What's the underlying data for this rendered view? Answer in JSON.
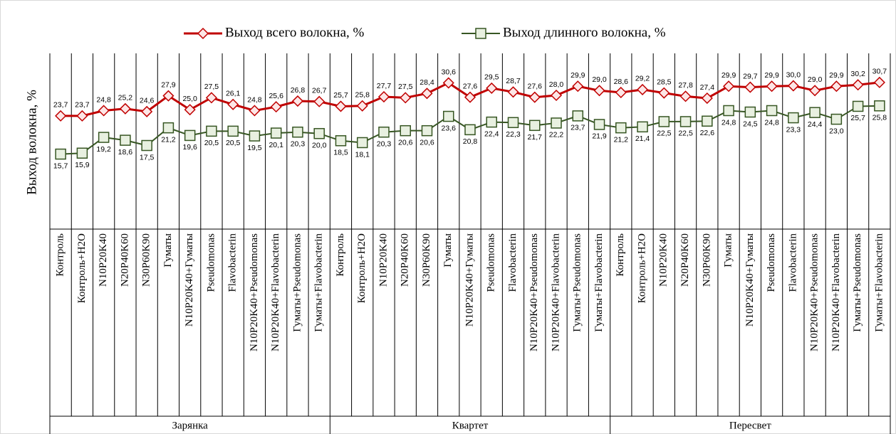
{
  "chart_data": {
    "type": "line",
    "y_label": "Выход волокна, %",
    "ylim": [
      0,
      35
    ],
    "groups": [
      "Зарянка",
      "Квартет",
      "Пересвет"
    ],
    "categories": [
      "Контроль",
      "Контроль+H2O",
      "N10P20K40",
      "N20P40K60",
      "N30P60K90",
      "Гуматы",
      "N10P20K40+Гуматы",
      "Pseudomonas",
      "Flavobacterin",
      "N10P20K40+Pseudomonas",
      "N10P20K40+Flavobacterin",
      "Гуматы+Pseudomonas",
      "Гуматы+Flavobacterin",
      "Контроль",
      "Контроль+H2O",
      "N10P20K40",
      "N20P40K60",
      "N30P60K90",
      "Гуматы",
      "N10P20K40+Гуматы",
      "Pseudomonas",
      "Flavobacterin",
      "N10P20K40+Pseudomonas",
      "N10P20K40+Flavobacterin",
      "Гуматы+Pseudomonas",
      "Гуматы+Flavobacterin",
      "Контроль",
      "Контроль+H2O",
      "N10P20K40",
      "N20P40K60",
      "N30P60K90",
      "Гуматы",
      "N10P20K40+Гуматы",
      "Pseudomonas",
      "Flavobacterin",
      "N10P20K40+Pseudomonas",
      "N10P20K40+Flavobacterin",
      "Гуматы+Pseudomonas",
      "Гуматы+Flavobacterin"
    ],
    "legend": "top",
    "series": [
      {
        "name": "Выход всего волокна, %",
        "color": "#c00000",
        "marker": "diamond",
        "values": [
          23.7,
          23.7,
          24.8,
          25.2,
          24.6,
          27.9,
          25.0,
          27.5,
          26.1,
          24.8,
          25.6,
          26.8,
          26.7,
          25.7,
          25.8,
          27.7,
          27.5,
          28.4,
          30.6,
          27.6,
          29.5,
          28.7,
          27.6,
          28.0,
          29.9,
          29.0,
          28.6,
          29.2,
          28.5,
          27.8,
          27.4,
          29.9,
          29.7,
          29.9,
          30.0,
          29.0,
          29.9,
          30.2,
          30.7
        ],
        "value_labels": [
          "23,7",
          "23,7",
          "24,8",
          "25,2",
          "24,6",
          "27,9",
          "25,0",
          "27,5",
          "26,1",
          "24,8",
          "25,6",
          "26,8",
          "26,7",
          "25,7",
          "25,8",
          "27,7",
          "27,5",
          "28,4",
          "30,6",
          "27,6",
          "29,5",
          "28,7",
          "27,6",
          "28,0",
          "29,9",
          "29,0",
          "28,6",
          "29,2",
          "28,5",
          "27,8",
          "27,4",
          "29,9",
          "29,7",
          "29,9",
          "30,0",
          "29,0",
          "29,9",
          "30,2",
          "30,7"
        ]
      },
      {
        "name": "Выход длинного волокна, %",
        "color": "#375623",
        "marker": "square",
        "values": [
          15.7,
          15.9,
          19.2,
          18.6,
          17.5,
          21.2,
          19.6,
          20.5,
          20.5,
          19.5,
          20.1,
          20.3,
          20.0,
          18.5,
          18.1,
          20.3,
          20.6,
          20.6,
          23.6,
          20.8,
          22.4,
          22.3,
          21.7,
          22.2,
          23.7,
          21.9,
          21.2,
          21.4,
          22.5,
          22.5,
          22.6,
          24.8,
          24.5,
          24.8,
          23.3,
          24.4,
          23.0,
          25.7,
          25.8
        ],
        "value_labels": [
          "15,7",
          "15,9",
          "19,2",
          "18,6",
          "17,5",
          "21,2",
          "19,6",
          "20,5",
          "20,5",
          "19,5",
          "20,1",
          "20,3",
          "20,0",
          "18,5",
          "18,1",
          "20,3",
          "20,6",
          "20,6",
          "23,6",
          "20,8",
          "22,4",
          "22,3",
          "21,7",
          "22,2",
          "23,7",
          "21,9",
          "21,2",
          "21,4",
          "22,5",
          "22,5",
          "22,6",
          "24,8",
          "24,5",
          "24,8",
          "23,3",
          "24,4",
          "23,0",
          "25,7",
          "25,8"
        ]
      }
    ]
  }
}
